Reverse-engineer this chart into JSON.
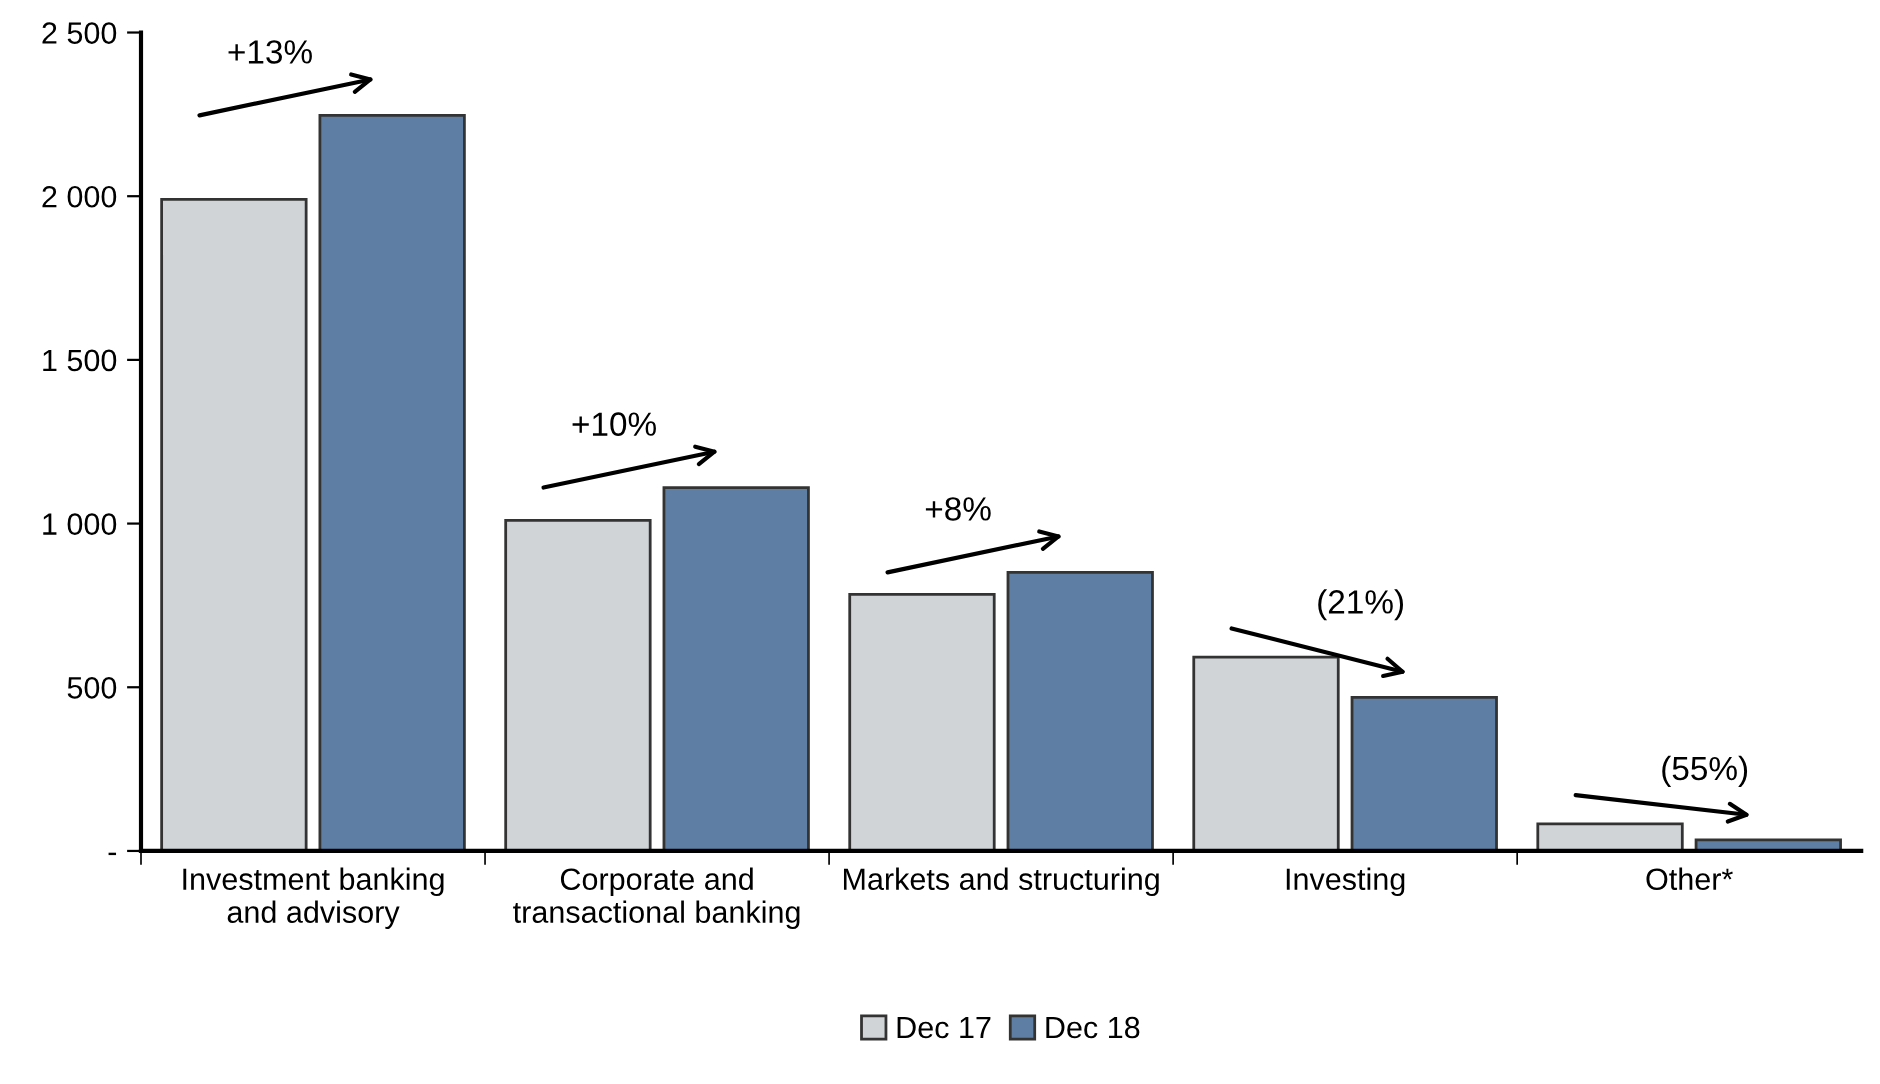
{
  "chart_data": {
    "type": "bar",
    "categories": [
      "Investment banking\nand advisory",
      "Corporate and\ntransactional banking",
      "Markets and structuring",
      "Investing",
      "Other*"
    ],
    "series": [
      {
        "name": "Dec 17",
        "color": "#d0d4d7",
        "values": [
          1990,
          1010,
          784,
          592,
          83
        ]
      },
      {
        "name": "Dec 18",
        "color": "#5e7fa3",
        "values": [
          2247,
          1110,
          851,
          469,
          34
        ]
      }
    ],
    "ylim": [
      0,
      2500
    ],
    "yticks": [
      {
        "value": 0,
        "label": "-"
      },
      500,
      {
        "value": 1000,
        "label": "1 000"
      },
      {
        "value": 1500,
        "label": "1 500"
      },
      {
        "value": 2000,
        "label": "2 000"
      },
      {
        "value": 2500,
        "label": "2 500"
      }
    ],
    "annotations": [
      "+13%",
      "+10%",
      "+8%",
      "(21%)",
      "(55%)"
    ],
    "legend": "bottom",
    "grid": false
  }
}
